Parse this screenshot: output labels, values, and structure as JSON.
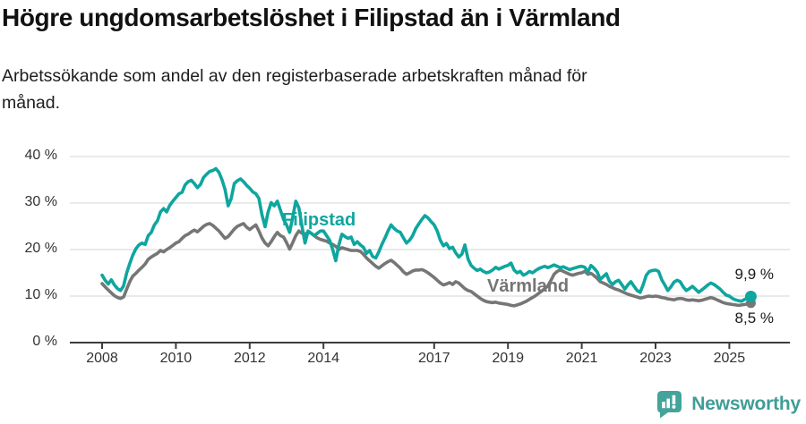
{
  "header": {
    "title": "Högre ungdomsarbetslöshet i Filipstad än i Värmland",
    "subtitle_lines": [
      "Arbetssökande som andel av den registerbaserade arbetskraften månad för",
      "månad."
    ]
  },
  "colors": {
    "filipstad_line": "#0ea69e",
    "varmland_line": "#767676",
    "grid": "#dedede",
    "axis": "#3c3c3c",
    "text": "#333333",
    "brand": "#3f9d96"
  },
  "chart_data": {
    "type": "line",
    "unit": "%",
    "frequency": "monthly",
    "x_start": "2008-01",
    "x_end": "2025-08",
    "y_axis": {
      "tick_values": [
        0,
        10,
        20,
        30,
        40
      ],
      "tick_labels": [
        "0 %",
        "10 %",
        "20 %",
        "30 %",
        "40 %"
      ],
      "range": [
        0,
        43
      ],
      "grid": true
    },
    "x_axis": {
      "tick_years": [
        2008,
        2010,
        2012,
        2014,
        2017,
        2019,
        2021,
        2023,
        2025
      ],
      "tick_labels": [
        "2008",
        "2010",
        "2012",
        "2014",
        "2017",
        "2019",
        "2021",
        "2023",
        "2025"
      ]
    },
    "legend_position": "inline-labels",
    "series": [
      {
        "name": "Filipstad",
        "color": "#0ea69e",
        "end_label": "9,9 %",
        "last_value": 9.9,
        "values": [
          14.5,
          13.4,
          12.6,
          13.5,
          12.4,
          11.6,
          11.2,
          12.2,
          15.0,
          17.0,
          18.8,
          20.2,
          21.0,
          21.4,
          21.1,
          23.0,
          23.7,
          25.3,
          26.2,
          28.1,
          28.8,
          28.1,
          29.5,
          30.4,
          31.2,
          32.0,
          32.3,
          33.9,
          34.6,
          34.9,
          34.2,
          33.3,
          34.0,
          35.5,
          36.2,
          36.8,
          37.0,
          37.4,
          36.6,
          35.0,
          32.9,
          29.4,
          31.0,
          34.2,
          34.8,
          35.2,
          34.6,
          33.8,
          33.2,
          32.4,
          32.0,
          31.0,
          27.5,
          24.9,
          28.1,
          30.1,
          29.4,
          30.4,
          28.5,
          26.5,
          25.3,
          23.7,
          27.0,
          30.4,
          29.0,
          25.0,
          21.4,
          24.0,
          23.5,
          23.0,
          23.5,
          24.0,
          24.0,
          23.0,
          22.0,
          20.0,
          17.6,
          21.0,
          23.3,
          22.8,
          22.4,
          22.7,
          21.1,
          21.7,
          21.0,
          20.5,
          19.2,
          19.8,
          18.5,
          18.2,
          19.5,
          21.1,
          22.5,
          24.0,
          25.3,
          24.5,
          24.0,
          23.7,
          22.5,
          21.4,
          22.0,
          23.0,
          24.5,
          25.5,
          26.5,
          27.3,
          26.8,
          26.0,
          25.3,
          24.0,
          22.0,
          20.8,
          21.3,
          20.2,
          20.5,
          19.3,
          18.4,
          19.0,
          21.0,
          18.0,
          16.6,
          16.0,
          15.5,
          15.8,
          15.3,
          15.0,
          15.2,
          15.6,
          16.2,
          15.8,
          16.1,
          16.4,
          16.6,
          17.1,
          15.6,
          15.0,
          15.3,
          14.5,
          14.8,
          15.3,
          15.0,
          15.5,
          15.9,
          16.2,
          16.4,
          16.1,
          16.4,
          16.7,
          16.4,
          16.1,
          16.3,
          16.0,
          15.7,
          15.9,
          16.1,
          16.3,
          16.4,
          16.2,
          15.2,
          16.6,
          16.0,
          15.2,
          13.6,
          14.2,
          14.8,
          13.2,
          12.5,
          13.1,
          13.4,
          12.5,
          11.5,
          12.4,
          13.1,
          12.1,
          11.2,
          10.8,
          12.5,
          14.5,
          15.3,
          15.5,
          15.6,
          15.3,
          13.5,
          12.4,
          11.2,
          12.0,
          13.0,
          13.4,
          13.1,
          12.0,
          11.2,
          11.6,
          12.1,
          11.5,
          10.8,
          11.3,
          11.8,
          12.4,
          12.8,
          12.5,
          12.0,
          11.5,
          10.8,
          10.2,
          10.0,
          9.5,
          9.2,
          9.0,
          8.9,
          9.3,
          9.6,
          9.9
        ]
      },
      {
        "name": "Värmland",
        "color": "#767676",
        "end_label": "8,5 %",
        "last_value": 8.5,
        "values": [
          12.7,
          12.0,
          11.3,
          10.7,
          10.1,
          9.7,
          9.5,
          9.8,
          11.5,
          13.1,
          14.3,
          14.9,
          15.6,
          16.2,
          16.9,
          17.9,
          18.4,
          18.8,
          19.2,
          19.8,
          19.5,
          20.0,
          20.4,
          20.9,
          21.4,
          21.7,
          22.4,
          23.0,
          23.3,
          23.8,
          24.2,
          23.8,
          24.4,
          25.0,
          25.4,
          25.6,
          25.2,
          24.6,
          24.0,
          23.2,
          22.4,
          22.8,
          23.6,
          24.4,
          25.0,
          25.3,
          25.6,
          24.8,
          24.3,
          24.8,
          25.3,
          24.0,
          22.5,
          21.4,
          20.8,
          21.7,
          22.8,
          23.7,
          23.0,
          22.7,
          21.5,
          20.1,
          21.5,
          23.0,
          24.0,
          23.5,
          23.3,
          23.7,
          23.5,
          23.0,
          22.5,
          22.2,
          22.0,
          21.8,
          21.4,
          21.1,
          20.7,
          20.0,
          20.4,
          20.2,
          20.0,
          19.8,
          19.8,
          19.8,
          19.6,
          19.0,
          18.2,
          17.6,
          17.0,
          16.4,
          16.0,
          16.5,
          17.0,
          17.4,
          17.7,
          17.2,
          16.6,
          16.0,
          15.2,
          14.7,
          15.0,
          15.4,
          15.6,
          15.6,
          15.7,
          15.4,
          15.0,
          14.5,
          14.0,
          13.4,
          12.8,
          12.4,
          12.6,
          12.9,
          12.5,
          13.1,
          12.8,
          12.2,
          11.6,
          11.2,
          11.0,
          10.5,
          10.0,
          9.5,
          9.1,
          8.8,
          8.7,
          8.6,
          8.7,
          8.5,
          8.4,
          8.3,
          8.2,
          8.0,
          7.9,
          8.1,
          8.3,
          8.6,
          8.9,
          9.3,
          9.7,
          10.1,
          10.6,
          11.1,
          11.6,
          12.2,
          13.4,
          14.7,
          15.3,
          15.6,
          15.3,
          15.0,
          14.7,
          14.5,
          14.7,
          14.9,
          15.0,
          15.3,
          14.7,
          14.9,
          14.4,
          13.8,
          13.1,
          12.8,
          12.5,
          12.1,
          11.8,
          11.5,
          11.3,
          11.0,
          10.7,
          10.4,
          10.2,
          10.0,
          9.8,
          9.6,
          9.7,
          9.9,
          10.0,
          9.9,
          10.0,
          9.9,
          9.7,
          9.6,
          9.4,
          9.3,
          9.2,
          9.4,
          9.5,
          9.4,
          9.2,
          9.1,
          9.2,
          9.1,
          9.0,
          9.1,
          9.3,
          9.5,
          9.7,
          9.5,
          9.2,
          8.9,
          8.6,
          8.4,
          8.3,
          8.2,
          8.1,
          8.0,
          8.1,
          8.2,
          8.3,
          8.5
        ]
      }
    ]
  },
  "footer": {
    "brand": "Newsworthy",
    "logo_icon": "bar-chart-speech-bubble"
  }
}
